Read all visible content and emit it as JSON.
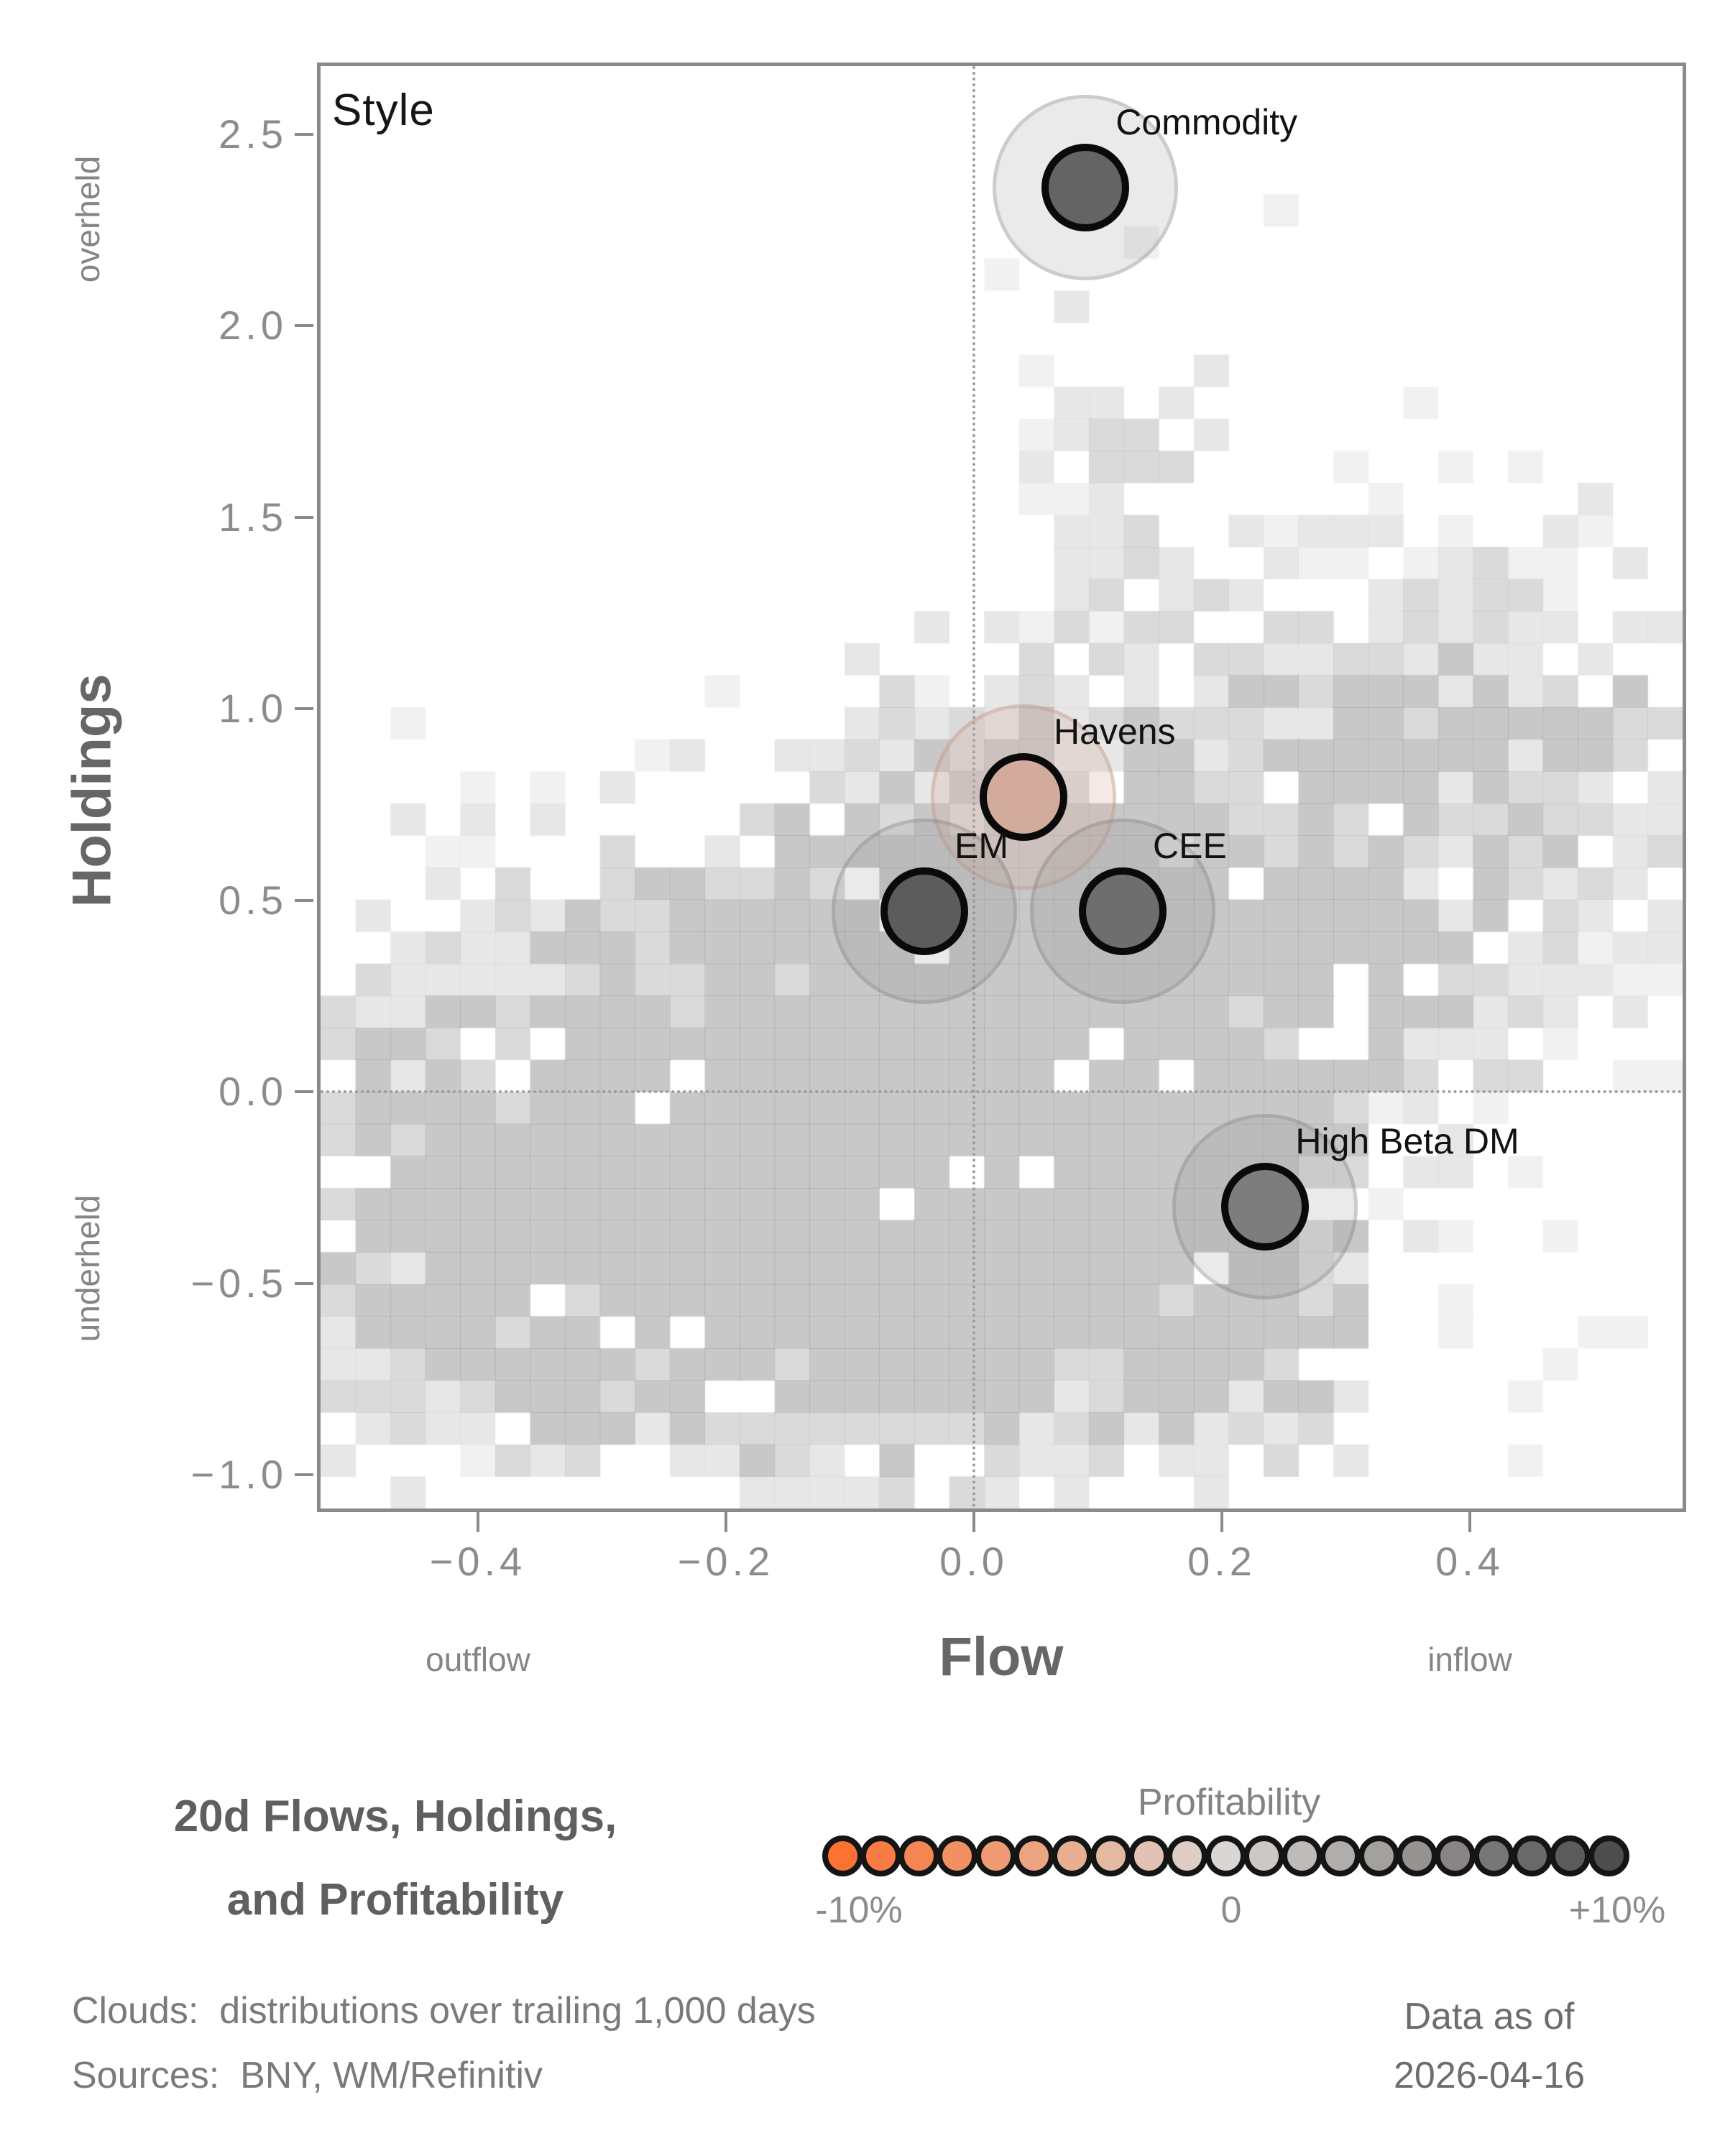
{
  "chart_data": {
    "type": "scatter",
    "title": "Style",
    "axes": {
      "x": {
        "label": "Flow",
        "sub_left": "outflow",
        "sub_right": "inflow",
        "tick_labels": [
          "−0.4",
          "−0.2",
          "0.0",
          "0.2",
          "0.4"
        ],
        "tick_values": [
          -0.4,
          -0.2,
          0.0,
          0.2,
          0.4
        ],
        "lim": [
          -0.53,
          0.575
        ]
      },
      "y": {
        "label": "Holdings",
        "sub_top": "overheld",
        "sub_bottom": "underheld",
        "tick_labels": [
          "2.5",
          "2.0",
          "1.5",
          "1.0",
          "0.5",
          "0.0",
          "−0.5",
          "−1.0"
        ],
        "tick_values": [
          2.5,
          2.0,
          1.5,
          1.0,
          0.5,
          0.0,
          -0.5,
          -1.0
        ],
        "lim": [
          -1.1,
          2.69
        ]
      }
    },
    "zero_lines": true,
    "grid": false,
    "points": [
      {
        "label": "Commodity",
        "x": 0.09,
        "y": 2.36,
        "fill": "#646464",
        "halo": "gray"
      },
      {
        "label": "Havens",
        "x": 0.04,
        "y": 0.77,
        "fill": "#d2ab9d",
        "halo": "pink"
      },
      {
        "label": "EM",
        "x": -0.04,
        "y": 0.47,
        "fill": "#5c5c5c",
        "halo": "gray"
      },
      {
        "label": "CEE",
        "x": 0.12,
        "y": 0.47,
        "fill": "#6e6e6e",
        "halo": "gray"
      },
      {
        "label": "High Beta DM",
        "x": 0.235,
        "y": -0.3,
        "fill": "#7d7d7d",
        "halo": "gray"
      }
    ],
    "cloud": {
      "description": "distributions over trailing 1,000 days",
      "n_cols": 39,
      "n_rows": 45,
      "seed": 13,
      "alpha_levels": [
        0.055,
        0.095,
        0.145,
        0.215
      ],
      "components": [
        {
          "amp": 1.0,
          "cx": 0.05,
          "cy": 0.35,
          "sx": 0.2,
          "sy": 0.42
        },
        {
          "amp": 0.9,
          "cx": -0.05,
          "cy": -0.35,
          "sx": 0.26,
          "sy": 0.38
        },
        {
          "amp": 0.5,
          "cx": -0.38,
          "cy": -0.2,
          "sx": 0.14,
          "sy": 0.5
        },
        {
          "amp": 0.45,
          "cx": 0.42,
          "cy": 0.9,
          "sx": 0.16,
          "sy": 0.42
        },
        {
          "amp": 0.3,
          "cx": 0.12,
          "cy": 1.65,
          "sx": 0.07,
          "sy": 0.35
        },
        {
          "amp": 0.25,
          "cx": 0.1,
          "cy": -0.6,
          "sx": 0.25,
          "sy": 0.3
        }
      ]
    }
  },
  "legend": {
    "title": "Profitability",
    "min_label": "-10%",
    "mid_label": "0",
    "max_label": "+10%",
    "n_circles": 21,
    "color_neg": "#fb7233",
    "color_mid": "#dcd6d2",
    "color_pos": "#4e4e4e",
    "ring_color": "#151515"
  },
  "footer": {
    "title_line1": "20d Flows, Holdings,",
    "title_line2": "and Profitability",
    "note_clouds": "Clouds:  distributions over trailing 1,000 days",
    "note_sources": "Sources:  BNY, WM/Refinitiv",
    "asof_line1": "Data as of",
    "asof_line2": "2026-04-16"
  }
}
